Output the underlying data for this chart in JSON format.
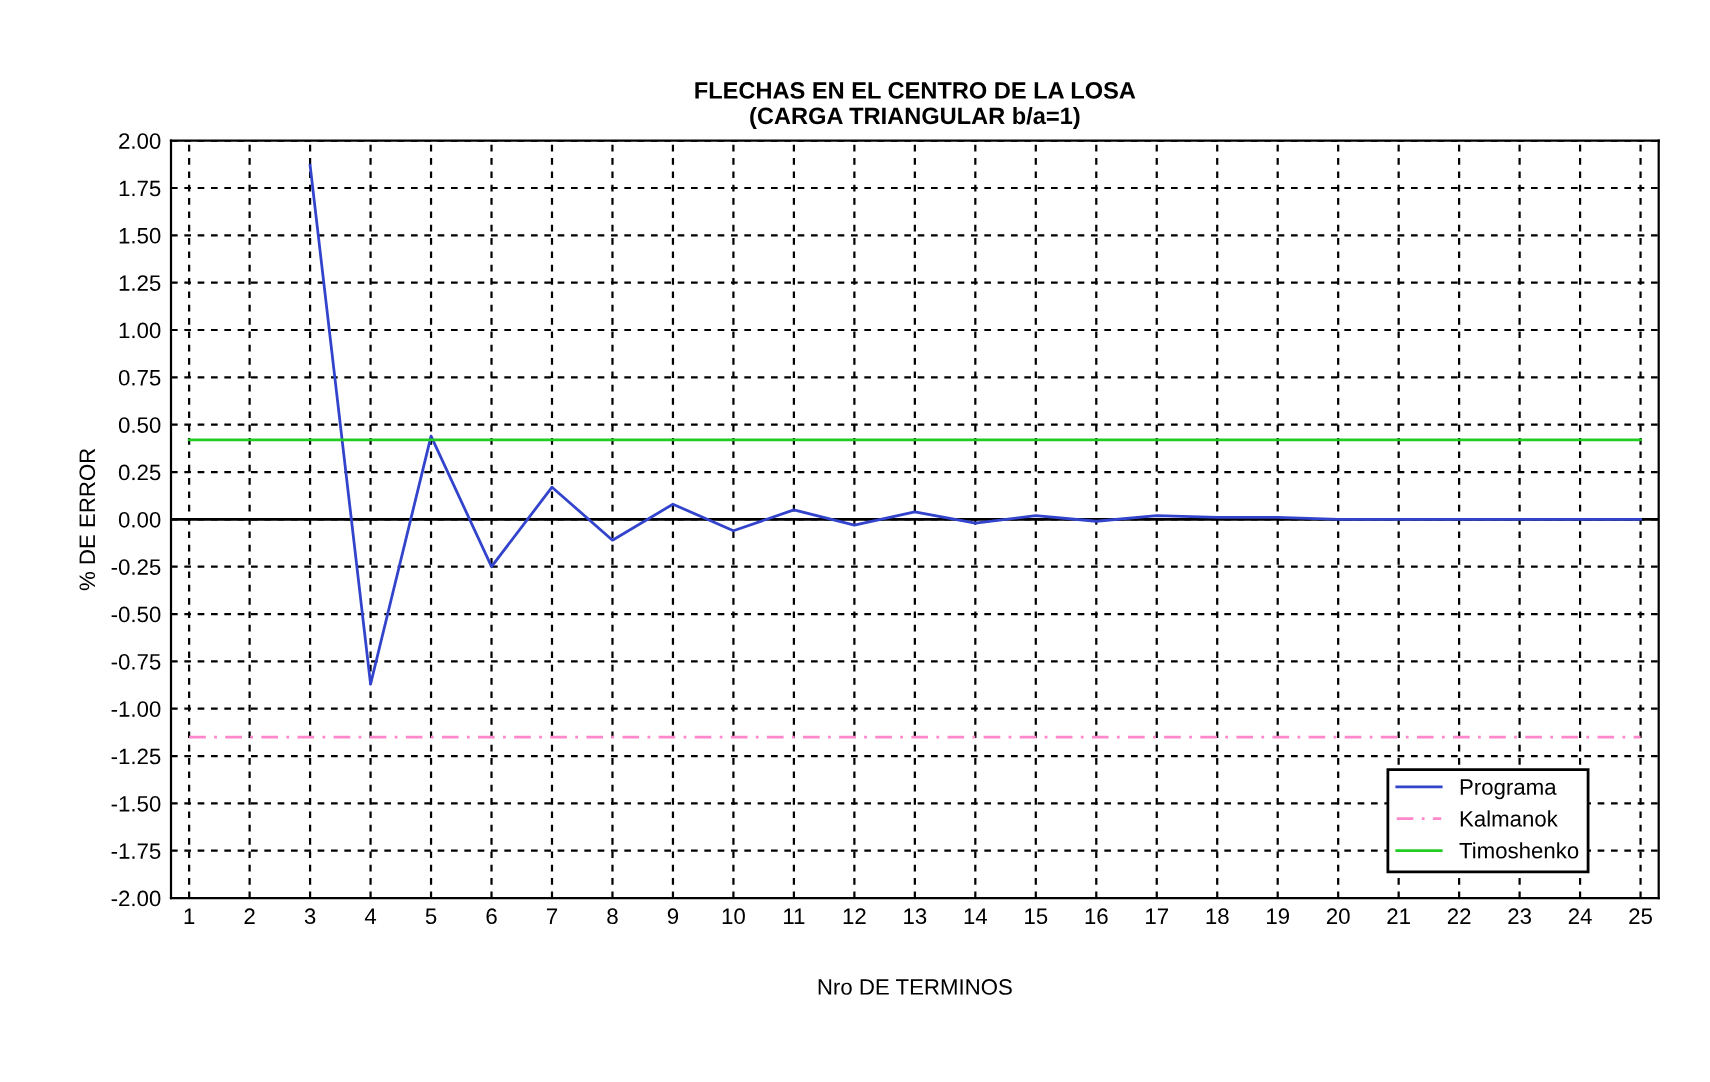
{
  "chart_data": {
    "type": "line",
    "title": "FLECHAS EN EL CENTRO DE LA LOSA\n(CARGA TRIANGULAR b/a=1)",
    "xlabel": "Nro DE TERMINOS",
    "ylabel": "% DE ERROR",
    "categories": [
      "1",
      "2",
      "3",
      "4",
      "5",
      "6",
      "7",
      "8",
      "9",
      "10",
      "11",
      "12",
      "13",
      "14",
      "15",
      "16",
      "17",
      "18",
      "19",
      "20",
      "21",
      "22",
      "23",
      "24",
      "25"
    ],
    "series": [
      {
        "name": "Programa",
        "color": "#3344cc",
        "line_style": "solid",
        "values": [
          null,
          null,
          1.87,
          -0.87,
          0.44,
          -0.25,
          0.17,
          -0.11,
          0.08,
          -0.06,
          0.05,
          -0.03,
          0.04,
          -0.02,
          0.02,
          -0.01,
          0.02,
          0.01,
          0.01,
          0.0,
          0.0,
          0.0,
          0.0,
          0.0,
          0.0
        ]
      },
      {
        "name": "Kalmanok",
        "color": "#ff88cc",
        "line_style": "dashed",
        "values": [
          -1.15,
          -1.15,
          -1.15,
          -1.15,
          -1.15,
          -1.15,
          -1.15,
          -1.15,
          -1.15,
          -1.15,
          -1.15,
          -1.15,
          -1.15,
          -1.15,
          -1.15,
          -1.15,
          -1.15,
          -1.15,
          -1.15,
          -1.15,
          -1.15,
          -1.15,
          -1.15,
          -1.15,
          -1.15
        ]
      },
      {
        "name": "Timoshenko",
        "color": "#22cc22",
        "line_style": "solid",
        "values": [
          0.42,
          0.42,
          0.42,
          0.42,
          0.42,
          0.42,
          0.42,
          0.42,
          0.42,
          0.42,
          0.42,
          0.42,
          0.42,
          0.42,
          0.42,
          0.42,
          0.42,
          0.42,
          0.42,
          0.42,
          0.42,
          0.42,
          0.42,
          0.42,
          0.42
        ]
      }
    ],
    "ylim": [
      -2,
      2
    ],
    "yticks": [
      {
        "value": -2,
        "label": "-2.00"
      },
      {
        "value": -1.75,
        "label": "-1.75"
      },
      {
        "value": -1.5,
        "label": "-1.50"
      },
      {
        "value": -1.25,
        "label": "-1.25"
      },
      {
        "value": -1,
        "label": "-1.00"
      },
      {
        "value": -0.75,
        "label": "-0.75"
      },
      {
        "value": -0.5,
        "label": "-0.50"
      },
      {
        "value": -0.25,
        "label": "-0.25"
      },
      {
        "value": 0,
        "label": "0.00"
      },
      {
        "value": 0.25,
        "label": "0.25"
      },
      {
        "value": 0.5,
        "label": "0.50"
      },
      {
        "value": 0.75,
        "label": "0.75"
      },
      {
        "value": 1,
        "label": "1.00"
      },
      {
        "value": 1.25,
        "label": "1.25"
      },
      {
        "value": 1.5,
        "label": "1.50"
      },
      {
        "value": 1.75,
        "label": "1.75"
      },
      {
        "value": 2,
        "label": "2.00"
      }
    ],
    "ref_lines": [
      {
        "axis": "y",
        "value": 0,
        "color": "#000000",
        "line_style": "solid"
      }
    ],
    "grid": true,
    "legend": "bottom right",
    "marker": "none"
  }
}
